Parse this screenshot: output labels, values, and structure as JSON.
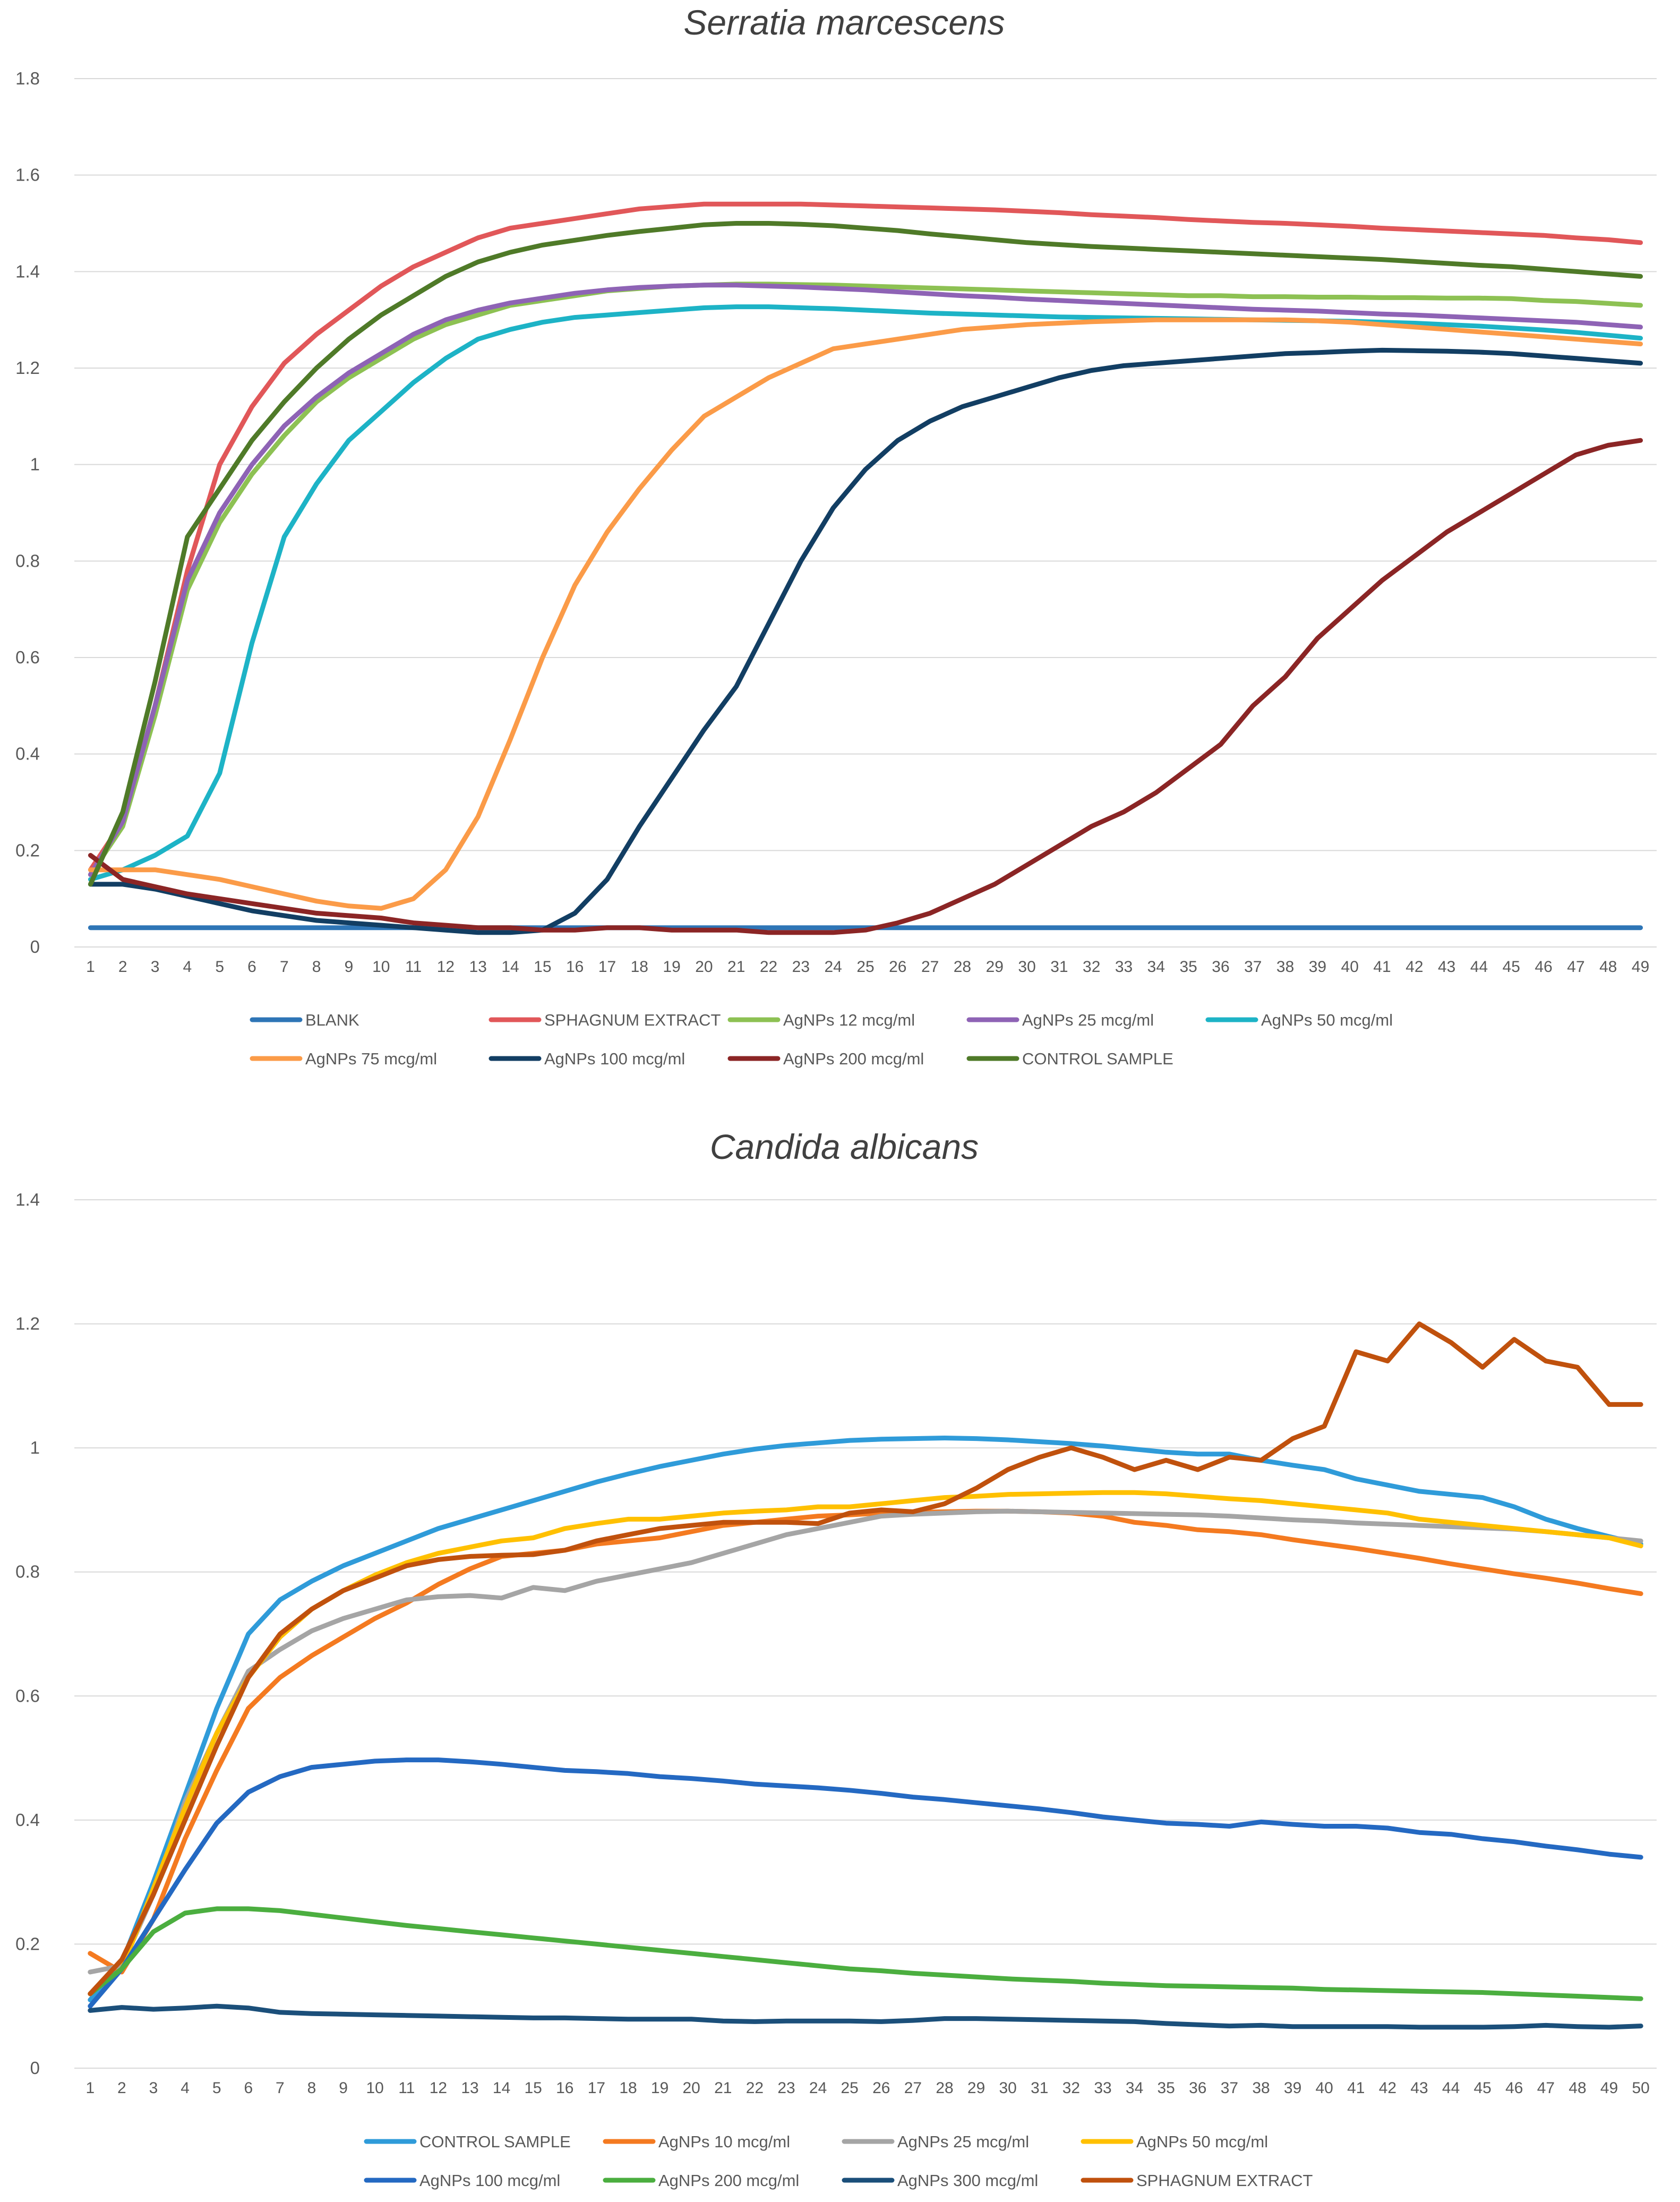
{
  "chart_data": [
    {
      "type": "line",
      "title": "Serratia marcescens",
      "xlabel": "",
      "ylabel": "",
      "x": [
        1,
        2,
        3,
        4,
        5,
        6,
        7,
        8,
        9,
        10,
        11,
        12,
        13,
        14,
        15,
        16,
        17,
        18,
        19,
        20,
        21,
        22,
        23,
        24,
        25,
        26,
        27,
        28,
        29,
        30,
        31,
        32,
        33,
        34,
        35,
        36,
        37,
        38,
        39,
        40,
        41,
        42,
        43,
        44,
        45,
        46,
        47,
        48,
        49
      ],
      "ylim": [
        0,
        1.8
      ],
      "yticks": [
        "0",
        "0.2",
        "0.4",
        "0.6",
        "0.8",
        "1",
        "1.2",
        "1.4",
        "1.6",
        "1.8"
      ],
      "grid": true,
      "legend_position": "bottom",
      "series": [
        {
          "name": "BLANK",
          "color": "#2E75B6",
          "values": [
            0.04,
            0.04,
            0.04,
            0.04,
            0.04,
            0.04,
            0.04,
            0.04,
            0.04,
            0.04,
            0.04,
            0.04,
            0.04,
            0.04,
            0.04,
            0.04,
            0.04,
            0.04,
            0.04,
            0.04,
            0.04,
            0.04,
            0.04,
            0.04,
            0.04,
            0.04,
            0.04,
            0.04,
            0.04,
            0.04,
            0.04,
            0.04,
            0.04,
            0.04,
            0.04,
            0.04,
            0.04,
            0.04,
            0.04,
            0.04,
            0.04,
            0.04,
            0.04,
            0.04,
            0.04,
            0.04,
            0.04,
            0.04,
            0.04
          ]
        },
        {
          "name": "SPHAGNUM EXTRACT",
          "color": "#E15759",
          "values": [
            0.16,
            0.26,
            0.5,
            0.78,
            1.0,
            1.12,
            1.21,
            1.27,
            1.32,
            1.37,
            1.41,
            1.44,
            1.47,
            1.49,
            1.5,
            1.51,
            1.52,
            1.53,
            1.535,
            1.54,
            1.54,
            1.54,
            1.54,
            1.538,
            1.536,
            1.534,
            1.532,
            1.53,
            1.528,
            1.525,
            1.522,
            1.518,
            1.515,
            1.512,
            1.508,
            1.505,
            1.502,
            1.5,
            1.497,
            1.494,
            1.49,
            1.487,
            1.484,
            1.481,
            1.478,
            1.475,
            1.47,
            1.466,
            1.46
          ]
        },
        {
          "name": "AgNPs 12 mcg/ml",
          "color": "#8DC153",
          "values": [
            0.15,
            0.25,
            0.48,
            0.74,
            0.88,
            0.98,
            1.06,
            1.13,
            1.18,
            1.22,
            1.26,
            1.29,
            1.31,
            1.33,
            1.34,
            1.35,
            1.36,
            1.365,
            1.37,
            1.372,
            1.374,
            1.374,
            1.373,
            1.372,
            1.37,
            1.368,
            1.366,
            1.364,
            1.362,
            1.36,
            1.358,
            1.356,
            1.354,
            1.352,
            1.35,
            1.35,
            1.348,
            1.348,
            1.347,
            1.347,
            1.346,
            1.346,
            1.345,
            1.345,
            1.344,
            1.34,
            1.338,
            1.334,
            1.33
          ]
        },
        {
          "name": "AgNPs 25 mcg/ml",
          "color": "#8E63B5",
          "values": [
            0.15,
            0.26,
            0.5,
            0.76,
            0.9,
            1.0,
            1.08,
            1.14,
            1.19,
            1.23,
            1.27,
            1.3,
            1.32,
            1.335,
            1.345,
            1.355,
            1.362,
            1.367,
            1.37,
            1.372,
            1.372,
            1.37,
            1.368,
            1.365,
            1.362,
            1.358,
            1.354,
            1.35,
            1.347,
            1.343,
            1.34,
            1.337,
            1.334,
            1.331,
            1.328,
            1.325,
            1.322,
            1.32,
            1.318,
            1.315,
            1.312,
            1.31,
            1.307,
            1.304,
            1.301,
            1.298,
            1.295,
            1.29,
            1.285
          ]
        },
        {
          "name": "AgNPs 50 mcg/ml",
          "color": "#1DB3C6",
          "values": [
            0.14,
            0.16,
            0.19,
            0.23,
            0.36,
            0.63,
            0.85,
            0.96,
            1.05,
            1.11,
            1.17,
            1.22,
            1.26,
            1.28,
            1.295,
            1.305,
            1.31,
            1.315,
            1.32,
            1.325,
            1.327,
            1.327,
            1.325,
            1.323,
            1.32,
            1.317,
            1.314,
            1.312,
            1.31,
            1.308,
            1.306,
            1.305,
            1.304,
            1.303,
            1.302,
            1.301,
            1.3,
            1.299,
            1.298,
            1.297,
            1.295,
            1.293,
            1.29,
            1.287,
            1.283,
            1.279,
            1.274,
            1.268,
            1.262
          ]
        },
        {
          "name": "AgNPs 75 mcg/ml",
          "color": "#FB9B48",
          "values": [
            0.16,
            0.16,
            0.16,
            0.15,
            0.14,
            0.125,
            0.11,
            0.095,
            0.085,
            0.08,
            0.1,
            0.16,
            0.27,
            0.43,
            0.6,
            0.75,
            0.86,
            0.95,
            1.03,
            1.1,
            1.14,
            1.18,
            1.21,
            1.24,
            1.25,
            1.26,
            1.27,
            1.28,
            1.285,
            1.29,
            1.293,
            1.296,
            1.298,
            1.3,
            1.3,
            1.3,
            1.3,
            1.3,
            1.298,
            1.295,
            1.29,
            1.285,
            1.28,
            1.275,
            1.27,
            1.265,
            1.26,
            1.255,
            1.25
          ]
        },
        {
          "name": "AgNPs 100 mcg/ml",
          "color": "#123E63",
          "values": [
            0.13,
            0.13,
            0.12,
            0.105,
            0.09,
            0.075,
            0.065,
            0.055,
            0.05,
            0.045,
            0.04,
            0.035,
            0.03,
            0.03,
            0.035,
            0.07,
            0.14,
            0.25,
            0.35,
            0.45,
            0.54,
            0.67,
            0.8,
            0.91,
            0.99,
            1.05,
            1.09,
            1.12,
            1.14,
            1.16,
            1.18,
            1.195,
            1.205,
            1.21,
            1.215,
            1.22,
            1.225,
            1.23,
            1.232,
            1.235,
            1.237,
            1.236,
            1.235,
            1.233,
            1.23,
            1.225,
            1.22,
            1.215,
            1.21
          ]
        },
        {
          "name": "AgNPs 200 mcg/ml",
          "color": "#8B2525",
          "values": [
            0.19,
            0.14,
            0.125,
            0.11,
            0.1,
            0.09,
            0.08,
            0.07,
            0.065,
            0.06,
            0.05,
            0.045,
            0.04,
            0.04,
            0.035,
            0.035,
            0.04,
            0.04,
            0.035,
            0.035,
            0.035,
            0.03,
            0.03,
            0.03,
            0.035,
            0.05,
            0.07,
            0.1,
            0.13,
            0.17,
            0.21,
            0.25,
            0.28,
            0.32,
            0.37,
            0.42,
            0.5,
            0.56,
            0.64,
            0.7,
            0.76,
            0.81,
            0.86,
            0.9,
            0.94,
            0.98,
            1.02,
            1.04,
            1.05
          ]
        },
        {
          "name": "CONTROL SAMPLE",
          "color": "#4F7A28",
          "values": [
            0.13,
            0.28,
            0.55,
            0.85,
            0.95,
            1.05,
            1.13,
            1.2,
            1.26,
            1.31,
            1.35,
            1.39,
            1.42,
            1.44,
            1.455,
            1.465,
            1.475,
            1.483,
            1.49,
            1.497,
            1.5,
            1.5,
            1.498,
            1.495,
            1.49,
            1.485,
            1.478,
            1.472,
            1.466,
            1.46,
            1.456,
            1.452,
            1.449,
            1.446,
            1.443,
            1.44,
            1.437,
            1.434,
            1.431,
            1.428,
            1.425,
            1.421,
            1.417,
            1.413,
            1.41,
            1.405,
            1.4,
            1.395,
            1.39
          ]
        }
      ]
    },
    {
      "type": "line",
      "title": "Candida albicans",
      "xlabel": "",
      "ylabel": "",
      "x": [
        1,
        2,
        3,
        4,
        5,
        6,
        7,
        8,
        9,
        10,
        11,
        12,
        13,
        14,
        15,
        16,
        17,
        18,
        19,
        20,
        21,
        22,
        23,
        24,
        25,
        26,
        27,
        28,
        29,
        30,
        31,
        32,
        33,
        34,
        35,
        36,
        37,
        38,
        39,
        40,
        41,
        42,
        43,
        44,
        45,
        46,
        47,
        48,
        49,
        50
      ],
      "ylim": [
        0,
        1.4
      ],
      "yticks": [
        "0",
        "0.2",
        "0.4",
        "0.6",
        "0.8",
        "1",
        "1.2",
        "1.4"
      ],
      "grid": true,
      "legend_position": "bottom",
      "series": [
        {
          "name": "CONTROL SAMPLE",
          "color": "#2F9BD9",
          "values": [
            0.11,
            0.17,
            0.3,
            0.44,
            0.58,
            0.7,
            0.755,
            0.785,
            0.81,
            0.83,
            0.85,
            0.87,
            0.885,
            0.9,
            0.915,
            0.93,
            0.945,
            0.958,
            0.97,
            0.98,
            0.99,
            0.998,
            1.004,
            1.008,
            1.012,
            1.014,
            1.015,
            1.016,
            1.015,
            1.013,
            1.01,
            1.007,
            1.003,
            0.998,
            0.993,
            0.99,
            0.99,
            0.98,
            0.972,
            0.965,
            0.95,
            0.94,
            0.93,
            0.925,
            0.92,
            0.905,
            0.885,
            0.87,
            0.857,
            0.845
          ]
        },
        {
          "name": "AgNPs 10 mcg/ml",
          "color": "#F47A20",
          "values": [
            0.185,
            0.155,
            0.24,
            0.37,
            0.48,
            0.58,
            0.63,
            0.665,
            0.695,
            0.725,
            0.75,
            0.78,
            0.805,
            0.825,
            0.83,
            0.835,
            0.845,
            0.85,
            0.855,
            0.865,
            0.875,
            0.88,
            0.885,
            0.89,
            0.892,
            0.895,
            0.896,
            0.897,
            0.898,
            0.898,
            0.897,
            0.895,
            0.89,
            0.88,
            0.875,
            0.868,
            0.865,
            0.86,
            0.852,
            0.845,
            0.838,
            0.83,
            0.822,
            0.813,
            0.805,
            0.797,
            0.79,
            0.782,
            0.773,
            0.765
          ]
        },
        {
          "name": "AgNPs 25 mcg/ml",
          "color": "#A5A5A5",
          "values": [
            0.155,
            0.165,
            0.28,
            0.43,
            0.54,
            0.64,
            0.675,
            0.705,
            0.725,
            0.74,
            0.755,
            0.76,
            0.762,
            0.758,
            0.775,
            0.77,
            0.785,
            0.795,
            0.805,
            0.815,
            0.83,
            0.845,
            0.86,
            0.87,
            0.88,
            0.89,
            0.893,
            0.895,
            0.897,
            0.898,
            0.897,
            0.896,
            0.895,
            0.894,
            0.893,
            0.892,
            0.89,
            0.887,
            0.884,
            0.882,
            0.879,
            0.877,
            0.875,
            0.873,
            0.871,
            0.869,
            0.865,
            0.86,
            0.855,
            0.85
          ]
        },
        {
          "name": "AgNPs 50 mcg/ml",
          "color": "#FFC000",
          "values": [
            0.12,
            0.16,
            0.29,
            0.42,
            0.54,
            0.63,
            0.695,
            0.74,
            0.77,
            0.795,
            0.815,
            0.83,
            0.84,
            0.85,
            0.855,
            0.87,
            0.878,
            0.885,
            0.885,
            0.89,
            0.895,
            0.898,
            0.9,
            0.905,
            0.905,
            0.91,
            0.915,
            0.92,
            0.922,
            0.925,
            0.926,
            0.927,
            0.928,
            0.928,
            0.926,
            0.922,
            0.918,
            0.915,
            0.91,
            0.905,
            0.9,
            0.895,
            0.885,
            0.88,
            0.875,
            0.87,
            0.865,
            0.86,
            0.855,
            0.842
          ]
        },
        {
          "name": "AgNPs 100 mcg/ml",
          "color": "#2469C2",
          "values": [
            0.1,
            0.16,
            0.24,
            0.32,
            0.395,
            0.445,
            0.47,
            0.485,
            0.49,
            0.495,
            0.497,
            0.497,
            0.494,
            0.49,
            0.485,
            0.48,
            0.478,
            0.475,
            0.47,
            0.467,
            0.463,
            0.458,
            0.455,
            0.452,
            0.448,
            0.443,
            0.437,
            0.433,
            0.428,
            0.423,
            0.418,
            0.412,
            0.405,
            0.4,
            0.395,
            0.393,
            0.39,
            0.397,
            0.393,
            0.39,
            0.39,
            0.387,
            0.38,
            0.377,
            0.37,
            0.365,
            0.358,
            0.352,
            0.345,
            0.34
          ]
        },
        {
          "name": "AgNPs 200 mcg/ml",
          "color": "#4BAE3F",
          "values": [
            0.12,
            0.16,
            0.22,
            0.25,
            0.257,
            0.257,
            0.254,
            0.248,
            0.242,
            0.236,
            0.23,
            0.225,
            0.22,
            0.215,
            0.21,
            0.205,
            0.2,
            0.195,
            0.19,
            0.185,
            0.18,
            0.175,
            0.17,
            0.165,
            0.16,
            0.157,
            0.153,
            0.15,
            0.147,
            0.144,
            0.142,
            0.14,
            0.137,
            0.135,
            0.133,
            0.132,
            0.131,
            0.13,
            0.129,
            0.127,
            0.126,
            0.125,
            0.124,
            0.123,
            0.122,
            0.12,
            0.118,
            0.116,
            0.114,
            0.112
          ]
        },
        {
          "name": "AgNPs 300 mcg/ml",
          "color": "#1B4F7A",
          "values": [
            0.093,
            0.098,
            0.095,
            0.097,
            0.1,
            0.097,
            0.09,
            0.088,
            0.087,
            0.086,
            0.085,
            0.084,
            0.083,
            0.082,
            0.081,
            0.081,
            0.08,
            0.079,
            0.079,
            0.079,
            0.076,
            0.075,
            0.076,
            0.076,
            0.076,
            0.075,
            0.077,
            0.08,
            0.08,
            0.079,
            0.078,
            0.077,
            0.076,
            0.075,
            0.072,
            0.07,
            0.068,
            0.069,
            0.067,
            0.067,
            0.067,
            0.067,
            0.066,
            0.066,
            0.066,
            0.067,
            0.069,
            0.067,
            0.066,
            0.068
          ]
        },
        {
          "name": "SPHAGNUM EXTRACT",
          "color": "#C0510D",
          "values": [
            0.12,
            0.175,
            0.28,
            0.4,
            0.52,
            0.63,
            0.7,
            0.74,
            0.77,
            0.79,
            0.81,
            0.82,
            0.825,
            0.827,
            0.828,
            0.835,
            0.85,
            0.86,
            0.87,
            0.875,
            0.88,
            0.88,
            0.88,
            0.878,
            0.895,
            0.9,
            0.897,
            0.91,
            0.935,
            0.965,
            0.985,
            1.0,
            0.985,
            0.965,
            0.98,
            0.965,
            0.985,
            0.98,
            1.015,
            1.035,
            1.155,
            1.14,
            1.2,
            1.17,
            1.13,
            1.175,
            1.14,
            1.13,
            1.07,
            1.07
          ]
        }
      ]
    }
  ]
}
